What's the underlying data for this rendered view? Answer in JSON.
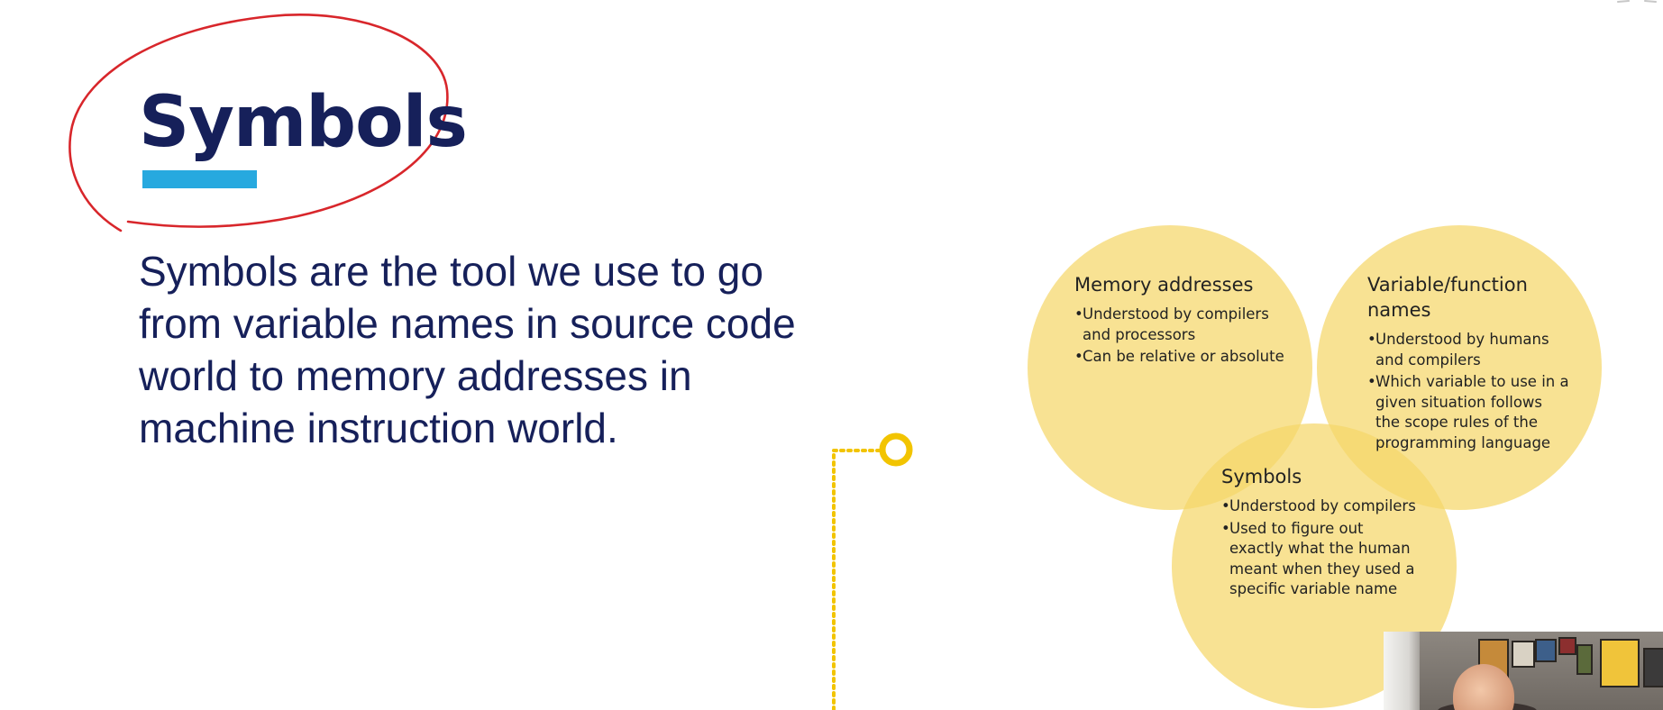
{
  "slide": {
    "title": "Symbols",
    "body": "Symbols are the tool we use to go from variable names in source code world to memory addresses in machine instruction world.",
    "colors": {
      "title": "#16205a",
      "underline": "#27a9df",
      "annotation": "#d8262b",
      "circle": "#f5d76a",
      "connector": "#f2c400"
    }
  },
  "venn": {
    "memory": {
      "heading": "Memory addresses",
      "items": [
        "Understood by compilers and processors",
        "Can be relative or absolute"
      ]
    },
    "variable": {
      "heading": "Variable/function names",
      "items": [
        "Understood by humans and compilers",
        "Which variable to use in a given situation follows the scope rules of the programming language"
      ]
    },
    "symbols": {
      "heading": "Symbols",
      "items": [
        "Understood by compilers",
        "Used to figure out exactly what the human meant when they used a specific variable name"
      ]
    }
  },
  "icons": {
    "annotation": "hand-drawn-circle-icon",
    "connector": "timeline-node-icon",
    "webcam": "presenter-webcam-feed"
  }
}
